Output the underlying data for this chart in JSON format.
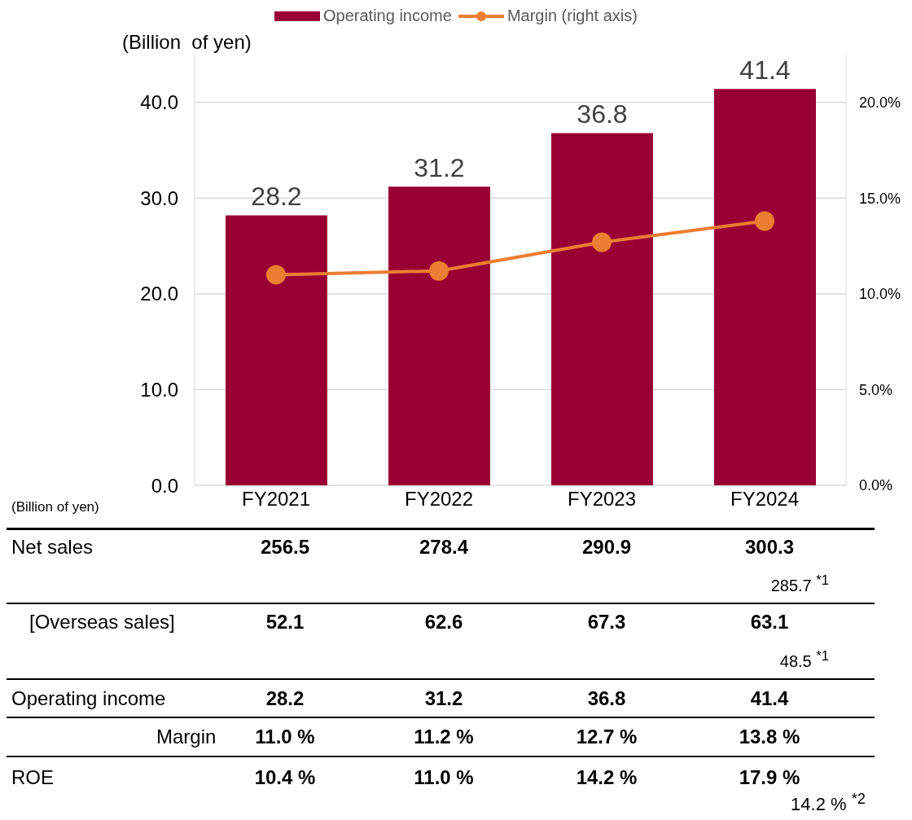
{
  "chart_data": {
    "type": "bar",
    "ylabel": "(Billion  of yen)",
    "categories": [
      "FY2021",
      "FY2022",
      "FY2023",
      "FY2024"
    ],
    "series": [
      {
        "name": "Operating income",
        "color": "#990033",
        "values": [
          28.2,
          31.2,
          36.8,
          41.4
        ],
        "value_labels": [
          "28.2",
          "31.2",
          "36.8",
          "41.4"
        ]
      },
      {
        "name": "Margin (right axis)",
        "type": "line",
        "axis": "y2",
        "color": "#ed7d31",
        "values": [
          11.0,
          11.2,
          12.7,
          13.8
        ]
      }
    ],
    "ylim": [
      0,
      45
    ],
    "yticks": [
      {
        "value": 0,
        "label": "0.0"
      },
      {
        "value": 10,
        "label": "10.0"
      },
      {
        "value": 20,
        "label": "20.0"
      },
      {
        "value": 30,
        "label": "30.0"
      },
      {
        "value": 40,
        "label": "40.0"
      }
    ],
    "y2lim": [
      0,
      22.5
    ],
    "y2ticks": [
      {
        "value": 0,
        "label": "0.0%"
      },
      {
        "value": 5,
        "label": "5.0%"
      },
      {
        "value": 10,
        "label": "10.0%"
      },
      {
        "value": 15,
        "label": "15.0%"
      },
      {
        "value": 20,
        "label": "20.0%"
      }
    ],
    "grid": "y",
    "legend": "top",
    "marker": "circle",
    "line_style": "solid",
    "annotations": [
      "(Billion of yen)",
      "Net sales",
      "256.5",
      "278.4",
      "290.9",
      "300.3",
      "285.7 $^{*1}$",
      "[Overseas sales]",
      "52.1",
      "62.6",
      "67.3",
      "63.1",
      "48.5 $^{*1}$",
      "Operating income",
      "28.2",
      "31.2",
      "36.8",
      "41.4",
      "Margin",
      "11.0 %",
      "11.2 %",
      "12.7 %",
      "13.8 %",
      "ROE",
      "10.4 %",
      "11.0 %",
      "14.2 %",
      "17.9 %",
      "14.2 % $^{*2}$"
    ]
  }
}
